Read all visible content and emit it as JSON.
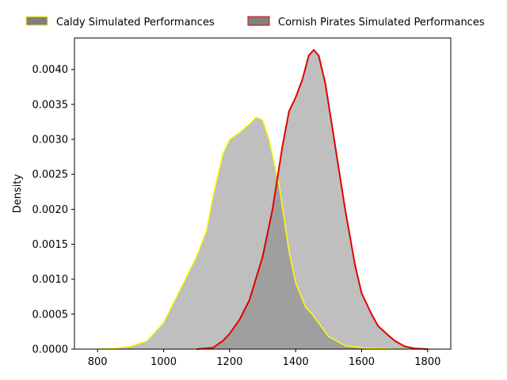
{
  "chart_data": {
    "type": "area",
    "xlabel": "",
    "ylabel": "Density",
    "xlim": [
      730,
      1870
    ],
    "ylim": [
      0,
      0.00445
    ],
    "xticks": [
      800,
      1000,
      1200,
      1400,
      1600,
      1800
    ],
    "xtick_labels": [
      "800",
      "1000",
      "1200",
      "1400",
      "1600",
      "1800"
    ],
    "yticks": [
      0,
      0.0005,
      0.001,
      0.0015,
      0.002,
      0.0025,
      0.003,
      0.0035,
      0.004
    ],
    "ytick_labels": [
      "0.0000",
      "0.0005",
      "0.0010",
      "0.0015",
      "0.0020",
      "0.0025",
      "0.0030",
      "0.0035",
      "0.0040"
    ],
    "grid": false,
    "legend_position": "top (outside, above plot)",
    "fill_color": "#808080",
    "fill_opacity": 0.5,
    "series": [
      {
        "name": "Caldy Simulated Performances",
        "color": "#ffff00",
        "x": [
          800,
          850,
          900,
          950,
          1000,
          1050,
          1100,
          1130,
          1150,
          1180,
          1200,
          1230,
          1260,
          1280,
          1300,
          1320,
          1350,
          1380,
          1400,
          1430,
          1450,
          1500,
          1550,
          1600,
          1650,
          1700,
          1750,
          1820
        ],
        "values": [
          0.0,
          1e-05,
          4e-05,
          0.00012,
          0.00038,
          0.00085,
          0.00133,
          0.0017,
          0.0022,
          0.0028,
          0.003,
          0.0031,
          0.00322,
          0.00332,
          0.00328,
          0.003,
          0.00235,
          0.0014,
          0.00095,
          0.0006,
          0.0005,
          0.00018,
          5e-05,
          2e-05,
          1e-05,
          0.0,
          0.0,
          0.0
        ]
      },
      {
        "name": "Cornish Pirates Simulated Performances",
        "color": "#e00000",
        "x": [
          1100,
          1150,
          1180,
          1200,
          1230,
          1260,
          1300,
          1330,
          1360,
          1380,
          1400,
          1420,
          1440,
          1455,
          1470,
          1490,
          1520,
          1550,
          1580,
          1600,
          1630,
          1650,
          1680,
          1700,
          1730,
          1760,
          1800
        ],
        "values": [
          0.0,
          2e-05,
          0.00012,
          0.00022,
          0.00042,
          0.0007,
          0.00132,
          0.002,
          0.0029,
          0.0034,
          0.0036,
          0.00385,
          0.0042,
          0.00428,
          0.0042,
          0.0038,
          0.0029,
          0.002,
          0.0012,
          0.0008,
          0.0005,
          0.00033,
          0.0002,
          0.00012,
          4e-05,
          1e-05,
          0.0
        ]
      }
    ]
  }
}
